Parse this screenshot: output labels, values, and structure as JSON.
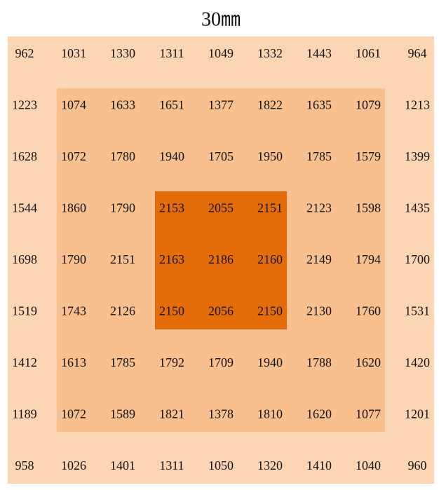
{
  "title": "30㎜",
  "table": {
    "rows": [
      [
        "962",
        "1031",
        "1330",
        "1311",
        "1049",
        "1332",
        "1443",
        "1061",
        "964"
      ],
      [
        "1223",
        "1074",
        "1633",
        "1651",
        "1377",
        "1822",
        "1635",
        "1079",
        "1213"
      ],
      [
        "1628",
        "1072",
        "1780",
        "1940",
        "1705",
        "1950",
        "1785",
        "1579",
        "1399"
      ],
      [
        "1544",
        "1860",
        "1790",
        "2153",
        "2055",
        "2151",
        "2123",
        "1598",
        "1435"
      ],
      [
        "1698",
        "1790",
        "2151",
        "2163",
        "2186",
        "2160",
        "2149",
        "1794",
        "1700"
      ],
      [
        "1519",
        "1743",
        "2126",
        "2150",
        "2056",
        "2150",
        "2130",
        "1760",
        "1531"
      ],
      [
        "1412",
        "1613",
        "1785",
        "1792",
        "1709",
        "1940",
        "1788",
        "1620",
        "1420"
      ],
      [
        "1189",
        "1072",
        "1589",
        "1821",
        "1378",
        "1810",
        "1620",
        "1077",
        "1201"
      ],
      [
        "958",
        "1026",
        "1401",
        "1311",
        "1050",
        "1320",
        "1410",
        "1040",
        "960"
      ]
    ]
  }
}
